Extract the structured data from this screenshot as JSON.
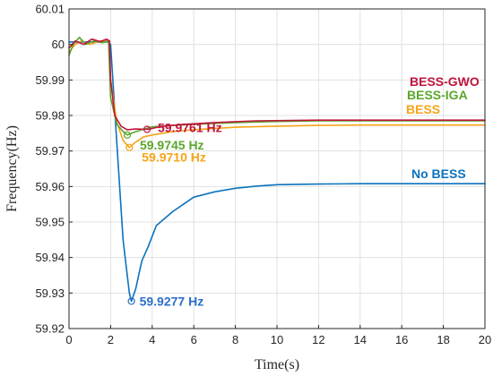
{
  "chart_data": {
    "type": "line",
    "title": "",
    "xlabel": "Time(s)",
    "ylabel": "Frequency(Hz)",
    "xlim": [
      0,
      20
    ],
    "ylim": [
      59.92,
      60.01
    ],
    "x_ticks": [
      0,
      2,
      4,
      6,
      8,
      10,
      12,
      14,
      16,
      18,
      20
    ],
    "y_ticks": [
      59.92,
      59.93,
      59.94,
      59.95,
      59.96,
      59.97,
      59.98,
      59.99,
      60.0,
      60.01
    ],
    "y_tick_labels": [
      "59.92",
      "59.93",
      "59.94",
      "59.95",
      "59.96",
      "59.97",
      "59.98",
      "59.99",
      "60",
      "60.01"
    ],
    "grid": true,
    "series": [
      {
        "name": "No BESS",
        "color": "#0c72bd",
        "x": [
          -0.2,
          1.9,
          2.0,
          2.3,
          2.6,
          2.9,
          3.0,
          3.2,
          3.5,
          3.8,
          4.2,
          4.6,
          5.0,
          5.5,
          6.0,
          7.0,
          8.0,
          9.0,
          10.0,
          12.0,
          14.0,
          16.0,
          18.0,
          20.0
        ],
        "y": [
          60.0007,
          60.0007,
          60.0,
          59.972,
          59.945,
          59.93,
          59.9277,
          59.931,
          59.939,
          59.943,
          59.949,
          59.951,
          59.953,
          59.955,
          59.957,
          59.9585,
          59.9595,
          59.9601,
          59.9605,
          59.9607,
          59.9608,
          59.9608,
          59.9608,
          59.9608
        ]
      },
      {
        "name": "BESS",
        "color": "#f5a417",
        "x": [
          -0.2,
          0.3,
          0.6,
          1.0,
          1.5,
          1.9,
          2.0,
          2.3,
          2.6,
          2.9,
          3.2,
          3.6,
          4.0,
          5.0,
          6.0,
          8.0,
          10.0,
          12.0,
          14.0,
          16.0,
          20.0
        ],
        "y": [
          59.998,
          60.0,
          60.001,
          60.0,
          60.001,
          60.001,
          59.99,
          59.978,
          59.973,
          59.971,
          59.9725,
          59.974,
          59.9745,
          59.9755,
          59.976,
          59.9767,
          59.977,
          59.9772,
          59.9773,
          59.9773,
          59.9773
        ]
      },
      {
        "name": "BESS-IGA",
        "color": "#5aa62c",
        "x": [
          -0.2,
          0.2,
          0.5,
          0.8,
          1.2,
          1.6,
          1.9,
          2.0,
          2.3,
          2.6,
          2.8,
          3.1,
          3.5,
          4.0,
          5.0,
          6.0,
          8.0,
          10.0,
          12.0,
          14.0,
          20.0
        ],
        "y": [
          59.997,
          60.0,
          60.002,
          60.0,
          60.001,
          60.0005,
          60.001,
          59.985,
          59.9775,
          59.9755,
          59.9745,
          59.9752,
          59.976,
          59.9768,
          59.9772,
          59.9775,
          59.978,
          59.9783,
          59.9785,
          59.9785,
          59.9785
        ]
      },
      {
        "name": "BESS-GWO",
        "color": "#c0143c",
        "x": [
          -0.2,
          0.3,
          0.7,
          1.1,
          1.5,
          1.8,
          1.95,
          2.0,
          2.2,
          2.5,
          2.8,
          3.2,
          3.8,
          4.5,
          5.5,
          7.0,
          9.0,
          12.0,
          16.0,
          20.0
        ],
        "y": [
          59.999,
          60.001,
          60.0,
          60.0015,
          60.0008,
          60.0015,
          60.001,
          59.99,
          59.98,
          59.977,
          59.976,
          59.9762,
          59.9761,
          59.977,
          59.9775,
          59.978,
          59.9785,
          59.9787,
          59.9787,
          59.9787
        ]
      }
    ],
    "annotations": [
      {
        "text": "59.9761 Hz",
        "x": 3.75,
        "y": 59.9761,
        "color": "#c0143c"
      },
      {
        "text": "59.9745 Hz",
        "x": 2.8,
        "y": 59.9745,
        "color": "#5aa62c"
      },
      {
        "text": "59.9710 Hz",
        "x": 2.9,
        "y": 59.971,
        "color": "#f5a417"
      },
      {
        "text": "59.9277 Hz",
        "x": 3.0,
        "y": 59.9277,
        "color": "#2a6fc9"
      }
    ],
    "legend_placement": "right (inline labels)"
  }
}
